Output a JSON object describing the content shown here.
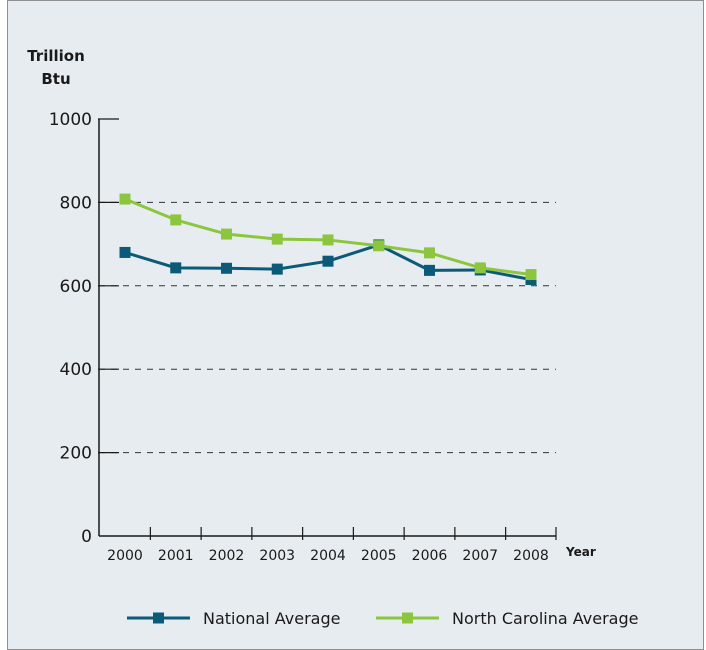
{
  "chart_data": {
    "type": "line",
    "ylabel": [
      "Trillion",
      "Btu"
    ],
    "xlabel": "Year",
    "ylim": [
      0,
      1000
    ],
    "yticks": [
      0,
      200,
      400,
      600,
      800,
      1000
    ],
    "grid": "horizontal dashed",
    "legend_position": "bottom",
    "x": [
      "2000",
      "2001",
      "2002",
      "2003",
      "2004",
      "2005",
      "2006",
      "2007",
      "2008"
    ],
    "series": [
      {
        "name": "National Average",
        "color": "#0b5a7a",
        "values": [
          680,
          643,
          642,
          640,
          659,
          698,
          637,
          638,
          615
        ]
      },
      {
        "name": "North Carolina Average",
        "color": "#8cc63f",
        "values": [
          808,
          758,
          724,
          712,
          710,
          696,
          679,
          643,
          627
        ]
      }
    ]
  }
}
